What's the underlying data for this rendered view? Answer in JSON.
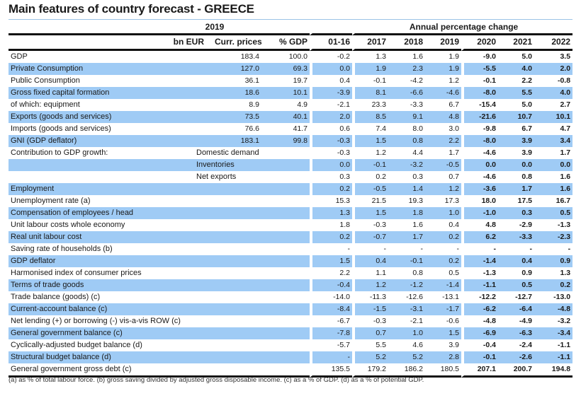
{
  "title": "Main features of country forecast - GREECE",
  "header": {
    "group_2019": "2019",
    "group_annual": "Annual percentage change",
    "columns": [
      "bn EUR",
      "Curr. prices",
      "% GDP",
      "01-16",
      "2017",
      "2018",
      "2019",
      "2020",
      "2021",
      "2022"
    ]
  },
  "colors": {
    "shade": "#9fcbf5",
    "rule": "#111111"
  },
  "rows": [
    {
      "label": "GDP",
      "sub": "",
      "curr": "183.4",
      "gdp": "100.0",
      "values": [
        "-0.2",
        "1.3",
        "1.6",
        "1.9",
        "-9.0",
        "5.0",
        "3.5"
      ],
      "shaded": false
    },
    {
      "label": "Private Consumption",
      "sub": "",
      "curr": "127.0",
      "gdp": "69.3",
      "values": [
        "0.0",
        "1.9",
        "2.3",
        "1.9",
        "-5.5",
        "4.0",
        "2.0"
      ],
      "shaded": true
    },
    {
      "label": "Public Consumption",
      "sub": "",
      "curr": "36.1",
      "gdp": "19.7",
      "values": [
        "0.4",
        "-0.1",
        "-4.2",
        "1.2",
        "-0.1",
        "2.2",
        "-0.8"
      ],
      "shaded": false
    },
    {
      "label": "Gross fixed capital formation",
      "sub": "",
      "curr": "18.6",
      "gdp": "10.1",
      "values": [
        "-3.9",
        "8.1",
        "-6.6",
        "-4.6",
        "-8.0",
        "5.5",
        "4.0"
      ],
      "shaded": true
    },
    {
      "label": "of which: equipment",
      "sub": "",
      "curr": "8.9",
      "gdp": "4.9",
      "values": [
        "-2.1",
        "23.3",
        "-3.3",
        "6.7",
        "-15.4",
        "5.0",
        "2.7"
      ],
      "shaded": false
    },
    {
      "label": "Exports (goods and services)",
      "sub": "",
      "curr": "73.5",
      "gdp": "40.1",
      "values": [
        "2.0",
        "8.5",
        "9.1",
        "4.8",
        "-21.6",
        "10.7",
        "10.1"
      ],
      "shaded": true
    },
    {
      "label": "Imports (goods and services)",
      "sub": "",
      "curr": "76.6",
      "gdp": "41.7",
      "values": [
        "0.6",
        "7.4",
        "8.0",
        "3.0",
        "-9.8",
        "6.7",
        "4.7"
      ],
      "shaded": false
    },
    {
      "label": "GNI (GDP deflator)",
      "sub": "",
      "curr": "183.1",
      "gdp": "99.8",
      "values": [
        "-0.3",
        "1.5",
        "0.8",
        "2.2",
        "-8.0",
        "3.9",
        "3.4"
      ],
      "shaded": true
    },
    {
      "label": "Contribution to GDP growth:",
      "sub": "Domestic demand",
      "curr": "",
      "gdp": "",
      "values": [
        "-0.3",
        "1.2",
        "4.4",
        "1.7",
        "-4.6",
        "3.9",
        "1.7"
      ],
      "shaded": false
    },
    {
      "label": "",
      "sub": "Inventories",
      "curr": "",
      "gdp": "",
      "values": [
        "0.0",
        "-0.1",
        "-3.2",
        "-0.5",
        "0.0",
        "0.0",
        "0.0"
      ],
      "shaded": true
    },
    {
      "label": "",
      "sub": "Net exports",
      "curr": "",
      "gdp": "",
      "values": [
        "0.3",
        "0.2",
        "0.3",
        "0.7",
        "-4.6",
        "0.8",
        "1.6"
      ],
      "shaded": false
    },
    {
      "label": "Employment",
      "sub": "",
      "curr": "",
      "gdp": "",
      "values": [
        "0.2",
        "-0.5",
        "1.4",
        "1.2",
        "-3.6",
        "1.7",
        "1.6"
      ],
      "shaded": true
    },
    {
      "label": "Unemployment rate (a)",
      "sub": "",
      "curr": "",
      "gdp": "",
      "values": [
        "15.3",
        "21.5",
        "19.3",
        "17.3",
        "18.0",
        "17.5",
        "16.7"
      ],
      "shaded": false
    },
    {
      "label": "Compensation of employees / head",
      "sub": "",
      "curr": "",
      "gdp": "",
      "values": [
        "1.3",
        "1.5",
        "1.8",
        "1.0",
        "-1.0",
        "0.3",
        "0.5"
      ],
      "shaded": true
    },
    {
      "label": "Unit labour costs whole economy",
      "sub": "",
      "curr": "",
      "gdp": "",
      "values": [
        "1.8",
        "-0.3",
        "1.6",
        "0.4",
        "4.8",
        "-2.9",
        "-1.3"
      ],
      "shaded": false
    },
    {
      "label": "Real unit labour cost",
      "sub": "",
      "curr": "",
      "gdp": "",
      "values": [
        "0.2",
        "-0.7",
        "1.7",
        "0.2",
        "6.2",
        "-3.3",
        "-2.3"
      ],
      "shaded": true
    },
    {
      "label": "Saving rate of households (b)",
      "sub": "",
      "curr": "",
      "gdp": "",
      "values": [
        "-",
        "-",
        "-",
        "-",
        "-",
        "-",
        "-"
      ],
      "shaded": false
    },
    {
      "label": "GDP deflator",
      "sub": "",
      "curr": "",
      "gdp": "",
      "values": [
        "1.5",
        "0.4",
        "-0.1",
        "0.2",
        "-1.4",
        "0.4",
        "0.9"
      ],
      "shaded": true
    },
    {
      "label": "Harmonised index of consumer prices",
      "sub": "",
      "curr": "",
      "gdp": "",
      "values": [
        "2.2",
        "1.1",
        "0.8",
        "0.5",
        "-1.3",
        "0.9",
        "1.3"
      ],
      "shaded": false
    },
    {
      "label": "Terms of trade goods",
      "sub": "",
      "curr": "",
      "gdp": "",
      "values": [
        "-0.4",
        "1.2",
        "-1.2",
        "-1.4",
        "-1.1",
        "0.5",
        "0.2"
      ],
      "shaded": true
    },
    {
      "label": "Trade balance (goods) (c)",
      "sub": "",
      "curr": "",
      "gdp": "",
      "values": [
        "-14.0",
        "-11.3",
        "-12.6",
        "-13.1",
        "-12.2",
        "-12.7",
        "-13.0"
      ],
      "shaded": false
    },
    {
      "label": "Current-account balance (c)",
      "sub": "",
      "curr": "",
      "gdp": "",
      "values": [
        "-8.4",
        "-1.5",
        "-3.1",
        "-1.7",
        "-6.2",
        "-6.4",
        "-4.8"
      ],
      "shaded": true
    },
    {
      "label": "Net lending (+) or borrowing (-) vis-a-vis ROW (c)",
      "sub": "",
      "curr": "",
      "gdp": "",
      "values": [
        "-6.7",
        "-0.3",
        "-2.1",
        "-0.6",
        "-4.8",
        "-4.9",
        "-3.2"
      ],
      "shaded": false
    },
    {
      "label": "General government balance (c)",
      "sub": "",
      "curr": "",
      "gdp": "",
      "values": [
        "-7.8",
        "0.7",
        "1.0",
        "1.5",
        "-6.9",
        "-6.3",
        "-3.4"
      ],
      "shaded": true
    },
    {
      "label": "Cyclically-adjusted budget balance (d)",
      "sub": "",
      "curr": "",
      "gdp": "",
      "values": [
        "-5.7",
        "5.5",
        "4.6",
        "3.9",
        "-0.4",
        "-2.4",
        "-1.1"
      ],
      "shaded": false
    },
    {
      "label": "Structural budget balance (d)",
      "sub": "",
      "curr": "",
      "gdp": "",
      "values": [
        "-",
        "5.2",
        "5.2",
        "2.8",
        "-0.1",
        "-2.6",
        "-1.1"
      ],
      "shaded": true
    },
    {
      "label": "General government gross debt (c)",
      "sub": "",
      "curr": "",
      "gdp": "",
      "values": [
        "135.5",
        "179.2",
        "186.2",
        "180.5",
        "207.1",
        "200.7",
        "194.8"
      ],
      "shaded": false
    }
  ],
  "footnote": "(a) as % of total labour force. (b) gross saving divided by adjusted gross disposable income. (c) as a % of GDP. (d) as a % of potential GDP."
}
